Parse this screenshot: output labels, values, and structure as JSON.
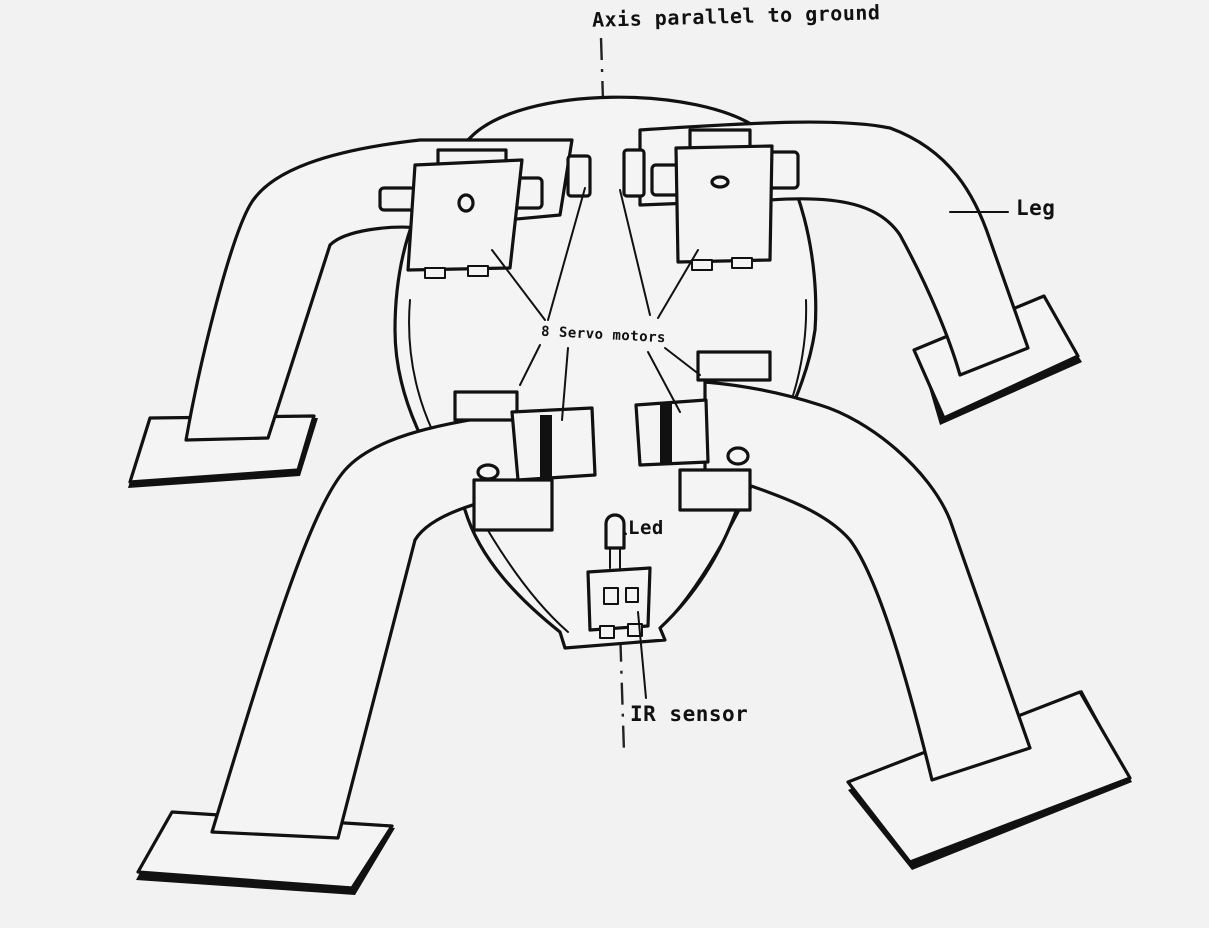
{
  "labels": {
    "axis": "Axis parallel to ground",
    "leg": "Leg",
    "servo": "8 Servo motors",
    "led": "Led",
    "ir_sensor": "IR sensor"
  },
  "colors": {
    "ink": "#111111",
    "paper": "#f4f4f4"
  }
}
